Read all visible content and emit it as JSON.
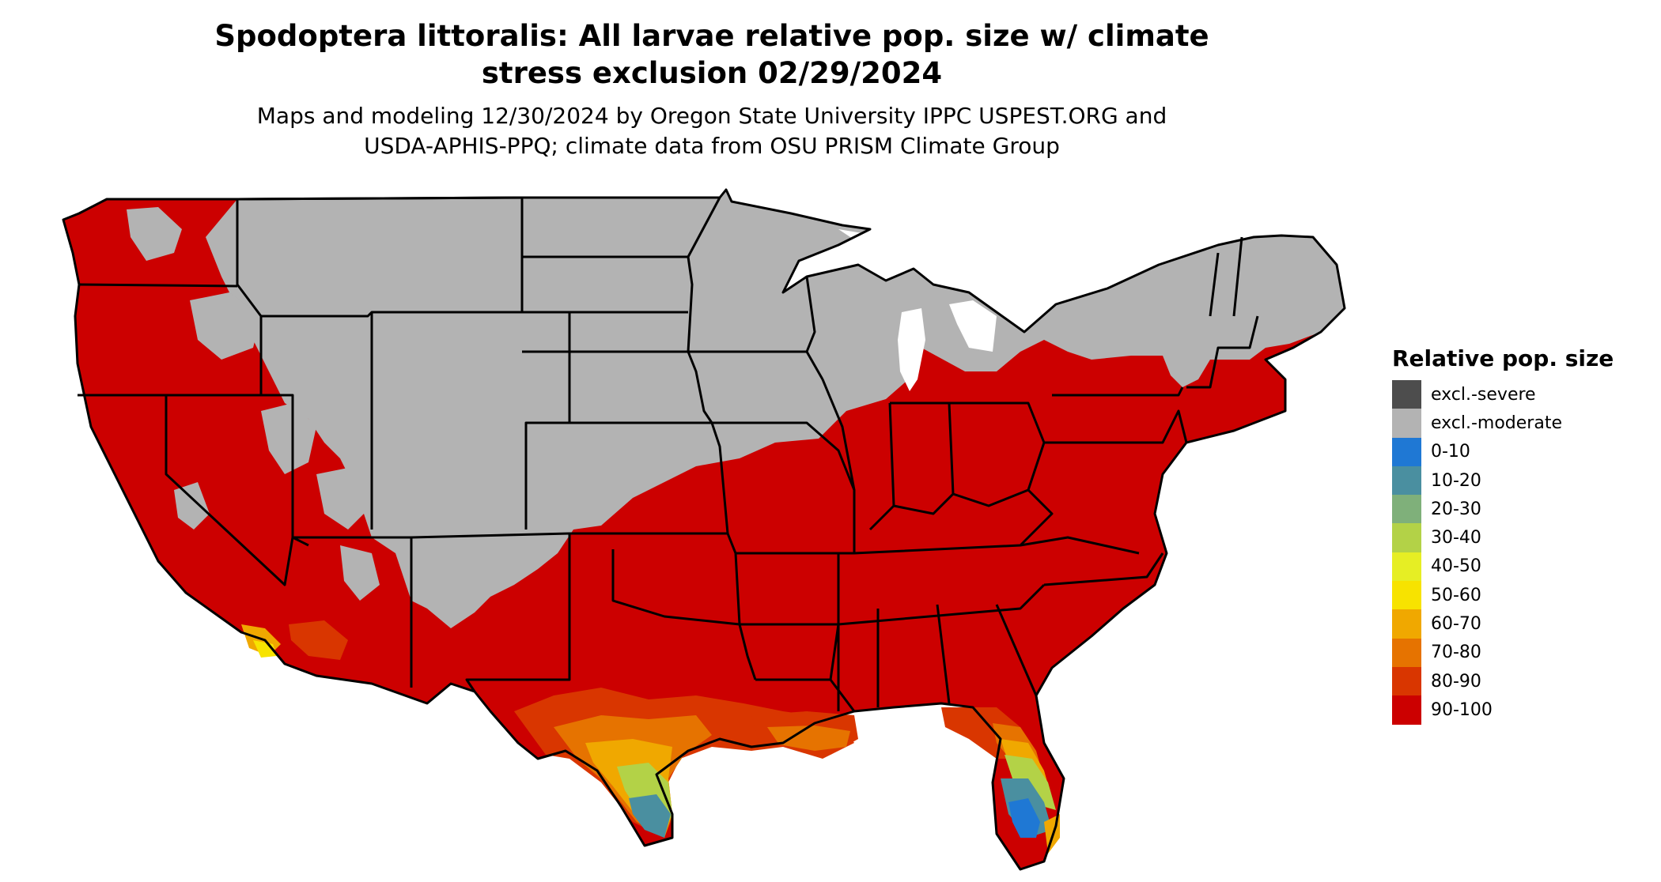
{
  "title": {
    "line1": "Spodoptera littoralis: All larvae relative pop. size w/ climate",
    "line2": "stress exclusion 02/29/2024"
  },
  "subtitle": {
    "line1": "Maps and modeling 12/30/2024 by Oregon State University IPPC USPEST.ORG and",
    "line2": "USDA-APHIS-PPQ; climate data from OSU PRISM Climate Group"
  },
  "legend": {
    "title": "Relative pop. size",
    "items": [
      {
        "label": "excl.-severe",
        "color": "#4d4d4d"
      },
      {
        "label": "excl.-moderate",
        "color": "#b3b3b3"
      },
      {
        "label": "0-10",
        "color": "#1f78d4"
      },
      {
        "label": "10-20",
        "color": "#4a8fa0"
      },
      {
        "label": "20-30",
        "color": "#7fb07a"
      },
      {
        "label": "30-40",
        "color": "#b3d247"
      },
      {
        "label": "40-50",
        "color": "#e6ee24"
      },
      {
        "label": "50-60",
        "color": "#f7e300"
      },
      {
        "label": "60-70",
        "color": "#f0a800"
      },
      {
        "label": "70-80",
        "color": "#e67300"
      },
      {
        "label": "80-90",
        "color": "#d93600"
      },
      {
        "label": "90-100",
        "color": "#cc0000"
      }
    ]
  },
  "map": {
    "colors": {
      "high": "#cc0000",
      "excluded": "#b3b3b3",
      "c8090": "#d93600",
      "c7080": "#e67300",
      "c6070": "#f0a800",
      "c5060": "#f7e300",
      "c3040": "#b3d247",
      "c1020": "#4a8fa0",
      "c0010": "#1f78d4",
      "border": "#000000"
    }
  }
}
